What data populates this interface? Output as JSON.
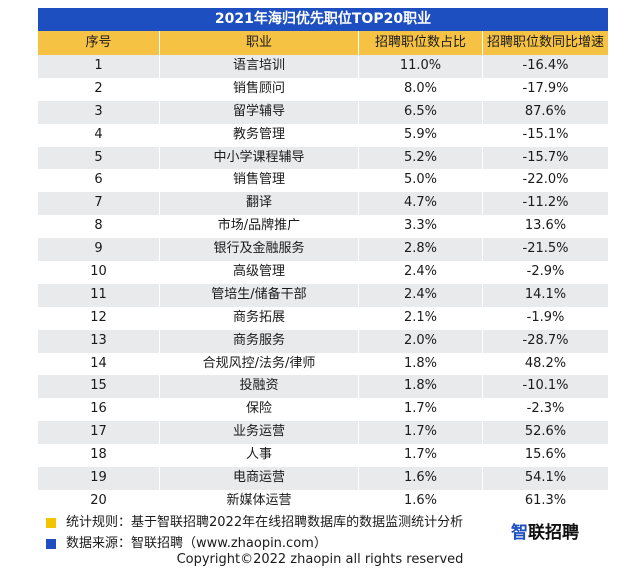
{
  "colors": {
    "title_bg": "#1e4fc1",
    "header_bg": "#f6c244",
    "row_alt_bg": "#e9eaec",
    "note_yellow": "#f5c400",
    "note_blue": "#1e4fc1"
  },
  "table": {
    "title": "2021年海归优先职位TOP20职业",
    "headers": [
      "序号",
      "职业",
      "招聘职位数占比",
      "招聘职位数同比增速"
    ]
  },
  "chart_data": {
    "type": "table",
    "title": "2021年海归优先职位TOP20职业",
    "columns": [
      "序号",
      "职业",
      "招聘职位数占比",
      "招聘职位数同比增速"
    ],
    "rows": [
      [
        "1",
        "语言培训",
        "11.0%",
        "-16.4%"
      ],
      [
        "2",
        "销售顾问",
        "8.0%",
        "-17.9%"
      ],
      [
        "3",
        "留学辅导",
        "6.5%",
        "87.6%"
      ],
      [
        "4",
        "教务管理",
        "5.9%",
        "-15.1%"
      ],
      [
        "5",
        "中小学课程辅导",
        "5.2%",
        "-15.7%"
      ],
      [
        "6",
        "销售管理",
        "5.0%",
        "-22.0%"
      ],
      [
        "7",
        "翻译",
        "4.7%",
        "-11.2%"
      ],
      [
        "8",
        "市场/品牌推广",
        "3.3%",
        "13.6%"
      ],
      [
        "9",
        "银行及金融服务",
        "2.8%",
        "-21.5%"
      ],
      [
        "10",
        "高级管理",
        "2.4%",
        "-2.9%"
      ],
      [
        "11",
        "管培生/储备干部",
        "2.4%",
        "14.1%"
      ],
      [
        "12",
        "商务拓展",
        "2.1%",
        "-1.9%"
      ],
      [
        "13",
        "商务服务",
        "2.0%",
        "-28.7%"
      ],
      [
        "14",
        "合规风控/法务/律师",
        "1.8%",
        "48.2%"
      ],
      [
        "15",
        "投融资",
        "1.8%",
        "-10.1%"
      ],
      [
        "16",
        "保险",
        "1.7%",
        "-2.3%"
      ],
      [
        "17",
        "业务运营",
        "1.7%",
        "52.6%"
      ],
      [
        "18",
        "人事",
        "1.7%",
        "15.6%"
      ],
      [
        "19",
        "电商运营",
        "1.6%",
        "54.1%"
      ],
      [
        "20",
        "新媒体运营",
        "1.6%",
        "61.3%"
      ]
    ]
  },
  "notes": {
    "method": "统计规则：基于智联招聘2022年在线招聘数据库的数据监测统计分析",
    "source": "数据来源：智联招聘（www.zhaopin.com）"
  },
  "logo": {
    "mark": "智",
    "rest": "联招聘"
  },
  "footer": {
    "copyright": "Copyright©2022 zhaopin all rights reserved"
  }
}
